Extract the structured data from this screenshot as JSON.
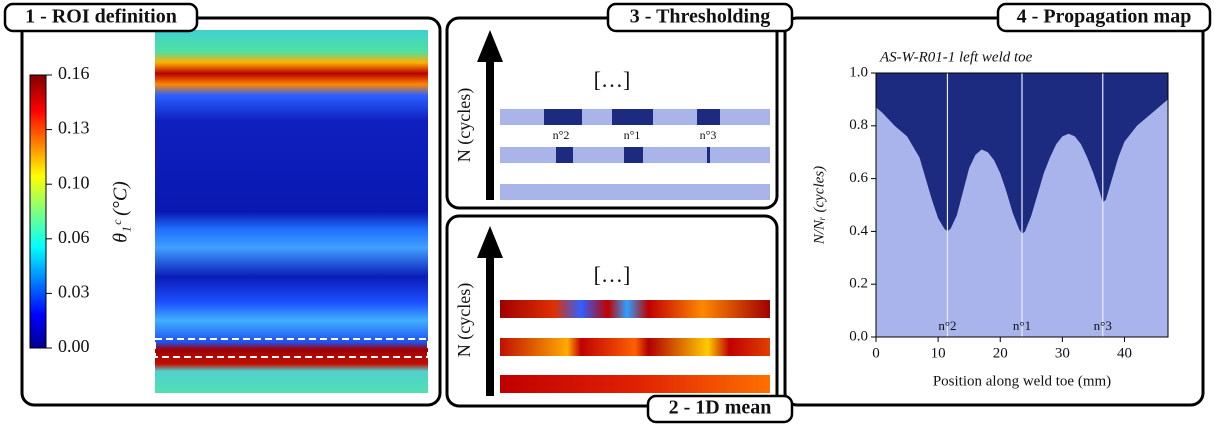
{
  "panels": {
    "roi": {
      "title": "1 - ROI definition"
    },
    "mean": {
      "title": "2 - 1D mean",
      "ylabel": "N (cycles)",
      "ellipsis": "[…]"
    },
    "threshold": {
      "title": "3 - Thresholding",
      "ylabel": "N (cycles)",
      "ellipsis": "[…]",
      "crack_labels": [
        "n°2",
        "n°1",
        "n°3"
      ]
    },
    "map": {
      "title": "4 - Propagation map"
    }
  },
  "colorbar": {
    "label": "θ₁ᶜ (°C)",
    "lim": [
      0,
      0.16
    ],
    "ticks": [
      {
        "value": 0,
        "label": "0.00"
      },
      {
        "value": 0.032,
        "label": "0.03"
      },
      {
        "value": 0.064,
        "label": "0.06"
      },
      {
        "value": 0.096,
        "label": "0.10"
      },
      {
        "value": 0.128,
        "label": "0.13"
      },
      {
        "value": 0.16,
        "label": "0.16"
      }
    ]
  },
  "chart_data": {
    "type": "area",
    "title": "AS-W-R01-1 left weld toe",
    "xlabel": "Position along weld toe (mm)",
    "ylabel": "N/Nᵣ (cycles)",
    "xlim": [
      0,
      47
    ],
    "ylim": [
      0,
      1
    ],
    "xticks": [
      0,
      10,
      20,
      30,
      40
    ],
    "yticks": [
      {
        "value": 0,
        "label": "0.0"
      },
      0.2,
      0.4,
      0.6,
      0.8,
      {
        "value": 1,
        "label": "1.0"
      }
    ],
    "x": [
      0,
      1,
      3,
      5,
      7,
      8,
      9,
      10,
      11,
      11.5,
      12,
      13,
      14,
      15,
      16,
      17,
      18,
      19,
      20,
      21,
      22,
      23,
      23.5,
      24,
      25,
      26,
      27,
      28,
      29,
      30,
      31,
      32,
      33,
      34,
      35,
      36,
      36.5,
      37,
      38,
      39,
      40,
      42,
      44,
      45,
      46,
      47
    ],
    "values": [
      0.87,
      0.85,
      0.8,
      0.76,
      0.68,
      0.6,
      0.52,
      0.45,
      0.41,
      0.4,
      0.41,
      0.46,
      0.55,
      0.64,
      0.69,
      0.71,
      0.7,
      0.67,
      0.62,
      0.55,
      0.47,
      0.41,
      0.39,
      0.4,
      0.46,
      0.54,
      0.62,
      0.68,
      0.73,
      0.76,
      0.77,
      0.76,
      0.73,
      0.68,
      0.62,
      0.55,
      0.51,
      0.52,
      0.6,
      0.68,
      0.74,
      0.8,
      0.84,
      0.86,
      0.88,
      0.9
    ],
    "colors": {
      "initiated": "#1c2a80",
      "intact": "#aab4ec",
      "crack_line": "#e8ecff"
    },
    "cracks": {
      "names": [
        "n°2",
        "n°1",
        "n°3"
      ],
      "x": [
        11.5,
        23.5,
        36.5
      ]
    }
  }
}
